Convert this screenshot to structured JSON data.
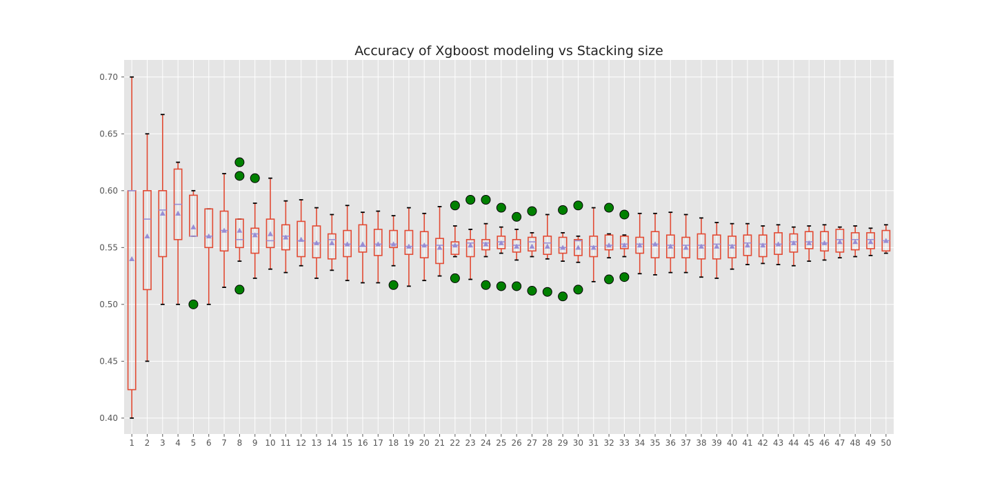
{
  "chart_data": {
    "type": "box",
    "title": "Accuracy of Xgboost modeling vs Stacking size",
    "xlabel": "",
    "ylabel": "",
    "ylim": [
      0.386,
      0.715
    ],
    "yticks": [
      "0.40",
      "0.45",
      "0.50",
      "0.55",
      "0.60",
      "0.65",
      "0.70"
    ],
    "grid": true,
    "categories": [
      "1",
      "2",
      "3",
      "4",
      "5",
      "6",
      "7",
      "8",
      "9",
      "10",
      "11",
      "12",
      "13",
      "14",
      "15",
      "16",
      "17",
      "18",
      "19",
      "20",
      "21",
      "22",
      "23",
      "24",
      "25",
      "26",
      "27",
      "28",
      "29",
      "30",
      "31",
      "32",
      "33",
      "34",
      "35",
      "36",
      "37",
      "38",
      "39",
      "40",
      "41",
      "42",
      "43",
      "44",
      "45",
      "46",
      "47",
      "48",
      "49",
      "50"
    ],
    "colors": {
      "background": "#e5e5e5",
      "grid": "#ffffff",
      "box": "#e24a33",
      "whisker": "#e24a33",
      "cap": "#000000",
      "median": "#988ed5",
      "mean": "#988ed5",
      "flier": "#008000"
    },
    "boxes": [
      {
        "whislo": 0.4,
        "q1": 0.425,
        "med": 0.6,
        "q3": 0.6,
        "whishi": 0.7,
        "mean": 0.54,
        "fliers": []
      },
      {
        "whislo": 0.45,
        "q1": 0.513,
        "med": 0.575,
        "q3": 0.6,
        "whishi": 0.65,
        "mean": 0.56,
        "fliers": []
      },
      {
        "whislo": 0.5,
        "q1": 0.542,
        "med": 0.583,
        "q3": 0.6,
        "whishi": 0.667,
        "mean": 0.58,
        "fliers": []
      },
      {
        "whislo": 0.5,
        "q1": 0.557,
        "med": 0.588,
        "q3": 0.619,
        "whishi": 0.625,
        "mean": 0.58,
        "fliers": []
      },
      {
        "whislo": 0.56,
        "q1": 0.56,
        "med": 0.56,
        "q3": 0.596,
        "whishi": 0.6,
        "mean": 0.568,
        "fliers": [
          0.5
        ]
      },
      {
        "whislo": 0.5,
        "q1": 0.55,
        "med": 0.56,
        "q3": 0.584,
        "whishi": 0.584,
        "mean": 0.56,
        "fliers": []
      },
      {
        "whislo": 0.515,
        "q1": 0.547,
        "med": 0.565,
        "q3": 0.582,
        "whishi": 0.615,
        "mean": 0.565,
        "fliers": []
      },
      {
        "whislo": 0.538,
        "q1": 0.55,
        "med": 0.557,
        "q3": 0.575,
        "whishi": 0.575,
        "mean": 0.565,
        "fliers": [
          0.513,
          0.613,
          0.625
        ]
      },
      {
        "whislo": 0.523,
        "q1": 0.545,
        "med": 0.562,
        "q3": 0.567,
        "whishi": 0.589,
        "mean": 0.561,
        "fliers": [
          0.611
        ]
      },
      {
        "whislo": 0.531,
        "q1": 0.55,
        "med": 0.556,
        "q3": 0.575,
        "whishi": 0.611,
        "mean": 0.562,
        "fliers": []
      },
      {
        "whislo": 0.528,
        "q1": 0.548,
        "med": 0.56,
        "q3": 0.57,
        "whishi": 0.591,
        "mean": 0.559,
        "fliers": []
      },
      {
        "whislo": 0.534,
        "q1": 0.542,
        "med": 0.556,
        "q3": 0.573,
        "whishi": 0.592,
        "mean": 0.557,
        "fliers": []
      },
      {
        "whislo": 0.523,
        "q1": 0.541,
        "med": 0.554,
        "q3": 0.569,
        "whishi": 0.585,
        "mean": 0.554,
        "fliers": []
      },
      {
        "whislo": 0.53,
        "q1": 0.54,
        "med": 0.557,
        "q3": 0.562,
        "whishi": 0.579,
        "mean": 0.554,
        "fliers": []
      },
      {
        "whislo": 0.521,
        "q1": 0.542,
        "med": 0.553,
        "q3": 0.565,
        "whishi": 0.587,
        "mean": 0.553,
        "fliers": []
      },
      {
        "whislo": 0.519,
        "q1": 0.546,
        "med": 0.551,
        "q3": 0.57,
        "whishi": 0.581,
        "mean": 0.553,
        "fliers": []
      },
      {
        "whislo": 0.519,
        "q1": 0.543,
        "med": 0.553,
        "q3": 0.566,
        "whishi": 0.582,
        "mean": 0.553,
        "fliers": []
      },
      {
        "whislo": 0.534,
        "q1": 0.55,
        "med": 0.553,
        "q3": 0.565,
        "whishi": 0.578,
        "mean": 0.553,
        "fliers": [
          0.517
        ]
      },
      {
        "whislo": 0.516,
        "q1": 0.544,
        "med": 0.551,
        "q3": 0.565,
        "whishi": 0.585,
        "mean": 0.551,
        "fliers": []
      },
      {
        "whislo": 0.521,
        "q1": 0.541,
        "med": 0.552,
        "q3": 0.564,
        "whishi": 0.58,
        "mean": 0.552,
        "fliers": []
      },
      {
        "whislo": 0.525,
        "q1": 0.536,
        "med": 0.552,
        "q3": 0.558,
        "whishi": 0.586,
        "mean": 0.55,
        "fliers": []
      },
      {
        "whislo": 0.542,
        "q1": 0.544,
        "med": 0.552,
        "q3": 0.555,
        "whishi": 0.569,
        "mean": 0.552,
        "fliers": [
          0.523,
          0.587
        ]
      },
      {
        "whislo": 0.522,
        "q1": 0.542,
        "med": 0.554,
        "q3": 0.557,
        "whishi": 0.566,
        "mean": 0.552,
        "fliers": [
          0.592
        ]
      },
      {
        "whislo": 0.542,
        "q1": 0.548,
        "med": 0.554,
        "q3": 0.557,
        "whishi": 0.571,
        "mean": 0.553,
        "fliers": [
          0.517,
          0.592
        ]
      },
      {
        "whislo": 0.545,
        "q1": 0.549,
        "med": 0.555,
        "q3": 0.56,
        "whishi": 0.568,
        "mean": 0.554,
        "fliers": [
          0.516,
          0.585
        ]
      },
      {
        "whislo": 0.539,
        "q1": 0.546,
        "med": 0.552,
        "q3": 0.557,
        "whishi": 0.566,
        "mean": 0.551,
        "fliers": [
          0.516,
          0.577
        ]
      },
      {
        "whislo": 0.542,
        "q1": 0.547,
        "med": 0.555,
        "q3": 0.559,
        "whishi": 0.563,
        "mean": 0.551,
        "fliers": [
          0.512,
          0.582
        ]
      },
      {
        "whislo": 0.54,
        "q1": 0.544,
        "med": 0.554,
        "q3": 0.56,
        "whishi": 0.579,
        "mean": 0.551,
        "fliers": [
          0.511
        ]
      },
      {
        "whislo": 0.538,
        "q1": 0.545,
        "med": 0.55,
        "q3": 0.559,
        "whishi": 0.563,
        "mean": 0.55,
        "fliers": [
          0.507,
          0.583
        ]
      },
      {
        "whislo": 0.537,
        "q1": 0.543,
        "med": 0.556,
        "q3": 0.557,
        "whishi": 0.56,
        "mean": 0.55,
        "fliers": [
          0.513,
          0.587
        ]
      },
      {
        "whislo": 0.52,
        "q1": 0.542,
        "med": 0.551,
        "q3": 0.56,
        "whishi": 0.585,
        "mean": 0.55,
        "fliers": []
      },
      {
        "whislo": 0.541,
        "q1": 0.548,
        "med": 0.552,
        "q3": 0.561,
        "whishi": 0.562,
        "mean": 0.552,
        "fliers": [
          0.522,
          0.585
        ]
      },
      {
        "whislo": 0.542,
        "q1": 0.549,
        "med": 0.553,
        "q3": 0.56,
        "whishi": 0.561,
        "mean": 0.552,
        "fliers": [
          0.524,
          0.579
        ]
      },
      {
        "whislo": 0.527,
        "q1": 0.545,
        "med": 0.553,
        "q3": 0.559,
        "whishi": 0.58,
        "mean": 0.552,
        "fliers": []
      },
      {
        "whislo": 0.526,
        "q1": 0.541,
        "med": 0.553,
        "q3": 0.564,
        "whishi": 0.58,
        "mean": 0.553,
        "fliers": []
      },
      {
        "whislo": 0.528,
        "q1": 0.541,
        "med": 0.552,
        "q3": 0.561,
        "whishi": 0.581,
        "mean": 0.551,
        "fliers": []
      },
      {
        "whislo": 0.528,
        "q1": 0.541,
        "med": 0.552,
        "q3": 0.559,
        "whishi": 0.579,
        "mean": 0.55,
        "fliers": []
      },
      {
        "whislo": 0.524,
        "q1": 0.54,
        "med": 0.552,
        "q3": 0.562,
        "whishi": 0.576,
        "mean": 0.551,
        "fliers": []
      },
      {
        "whislo": 0.523,
        "q1": 0.54,
        "med": 0.553,
        "q3": 0.561,
        "whishi": 0.572,
        "mean": 0.551,
        "fliers": []
      },
      {
        "whislo": 0.531,
        "q1": 0.541,
        "med": 0.552,
        "q3": 0.56,
        "whishi": 0.571,
        "mean": 0.551,
        "fliers": []
      },
      {
        "whislo": 0.535,
        "q1": 0.543,
        "med": 0.554,
        "q3": 0.561,
        "whishi": 0.571,
        "mean": 0.552,
        "fliers": []
      },
      {
        "whislo": 0.536,
        "q1": 0.542,
        "med": 0.553,
        "q3": 0.561,
        "whishi": 0.569,
        "mean": 0.552,
        "fliers": []
      },
      {
        "whislo": 0.535,
        "q1": 0.544,
        "med": 0.553,
        "q3": 0.563,
        "whishi": 0.57,
        "mean": 0.553,
        "fliers": []
      },
      {
        "whislo": 0.534,
        "q1": 0.546,
        "med": 0.555,
        "q3": 0.562,
        "whishi": 0.568,
        "mean": 0.554,
        "fliers": []
      },
      {
        "whislo": 0.538,
        "q1": 0.549,
        "med": 0.555,
        "q3": 0.564,
        "whishi": 0.569,
        "mean": 0.554,
        "fliers": []
      },
      {
        "whislo": 0.539,
        "q1": 0.547,
        "med": 0.554,
        "q3": 0.564,
        "whishi": 0.57,
        "mean": 0.554,
        "fliers": []
      },
      {
        "whislo": 0.541,
        "q1": 0.546,
        "med": 0.557,
        "q3": 0.566,
        "whishi": 0.568,
        "mean": 0.555,
        "fliers": []
      },
      {
        "whislo": 0.542,
        "q1": 0.548,
        "med": 0.557,
        "q3": 0.563,
        "whishi": 0.569,
        "mean": 0.555,
        "fliers": []
      },
      {
        "whislo": 0.543,
        "q1": 0.549,
        "med": 0.557,
        "q3": 0.563,
        "whishi": 0.567,
        "mean": 0.555,
        "fliers": []
      },
      {
        "whislo": 0.545,
        "q1": 0.547,
        "med": 0.556,
        "q3": 0.565,
        "whishi": 0.57,
        "mean": 0.556,
        "fliers": []
      }
    ]
  }
}
